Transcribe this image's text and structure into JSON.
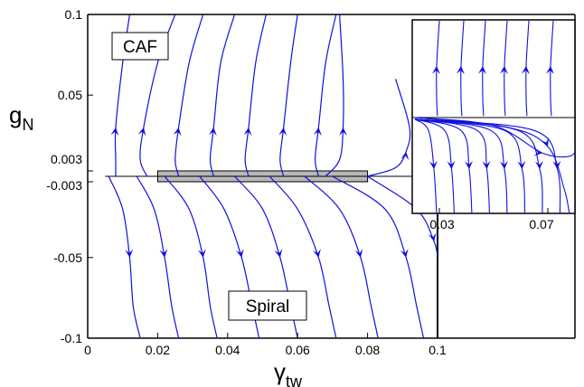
{
  "chart_data": {
    "type": "line",
    "title": "",
    "xlabel": "γ",
    "xlabel_sub": "tw",
    "ylabel": "g",
    "ylabel_sub": "N",
    "xlim": [
      0,
      0.1
    ],
    "ylim": [
      -0.1,
      0.1
    ],
    "xticks": [
      "0",
      "0.02",
      "0.04",
      "0.06",
      "0.08",
      "0.1"
    ],
    "yticks": [
      "0.1",
      "0.05",
      "0.003",
      "-0.003",
      "-0.05",
      "-0.1"
    ],
    "annotations": [
      "CAF",
      "Spiral"
    ],
    "shaded_region": {
      "x": [
        0.02,
        0.08
      ],
      "y": [
        -0.003,
        0.003
      ]
    },
    "fixed_line_y": 0,
    "inset": {
      "xticks": [
        "0.03",
        "0.07"
      ],
      "xlim": [
        0.02,
        0.08
      ],
      "ylim": [
        -0.003,
        0.003
      ]
    },
    "line_color": "#1010e0",
    "flow_lines": [
      {
        "x": [
          0.012,
          0.01,
          0.008,
          0.008,
          0.008
        ],
        "y": [
          0.1,
          0.07,
          0.03,
          0.01,
          0.0
        ]
      },
      {
        "x": [
          0.025,
          0.02,
          0.016,
          0.015,
          0.017
        ],
        "y": [
          0.1,
          0.07,
          0.03,
          0.01,
          0.0
        ]
      },
      {
        "x": [
          0.033,
          0.029,
          0.026,
          0.025,
          0.026
        ],
        "y": [
          0.1,
          0.07,
          0.03,
          0.01,
          0.0
        ]
      },
      {
        "x": [
          0.042,
          0.038,
          0.036,
          0.035,
          0.036
        ],
        "y": [
          0.1,
          0.07,
          0.03,
          0.01,
          0.0
        ]
      },
      {
        "x": [
          0.051,
          0.048,
          0.046,
          0.045,
          0.046
        ],
        "y": [
          0.1,
          0.07,
          0.03,
          0.01,
          0.0
        ]
      },
      {
        "x": [
          0.06,
          0.058,
          0.056,
          0.055,
          0.056
        ],
        "y": [
          0.1,
          0.07,
          0.03,
          0.01,
          0.0
        ]
      },
      {
        "x": [
          0.071,
          0.068,
          0.066,
          0.065,
          0.066
        ],
        "y": [
          0.1,
          0.07,
          0.03,
          0.01,
          0.0
        ]
      },
      {
        "x": [
          0.072,
          0.073,
          0.073,
          0.072,
          0.068
        ],
        "y": [
          0.1,
          0.06,
          0.03,
          0.01,
          0.0
        ]
      },
      {
        "x": [
          0.088,
          0.092,
          0.091,
          0.088,
          0.08
        ],
        "y": [
          0.06,
          0.03,
          0.015,
          0.005,
          0.0
        ]
      },
      {
        "x": [
          0.006,
          0.01,
          0.012,
          0.013,
          0.015
        ],
        "y": [
          0.0,
          -0.02,
          -0.05,
          -0.08,
          -0.1
        ]
      },
      {
        "x": [
          0.014,
          0.019,
          0.022,
          0.024,
          0.026
        ],
        "y": [
          0.0,
          -0.02,
          -0.05,
          -0.08,
          -0.1
        ]
      },
      {
        "x": [
          0.022,
          0.029,
          0.033,
          0.035,
          0.037
        ],
        "y": [
          0.0,
          -0.02,
          -0.05,
          -0.08,
          -0.1
        ]
      },
      {
        "x": [
          0.032,
          0.039,
          0.044,
          0.047,
          0.049
        ],
        "y": [
          0.0,
          -0.02,
          -0.05,
          -0.08,
          -0.1
        ]
      },
      {
        "x": [
          0.042,
          0.05,
          0.055,
          0.058,
          0.06
        ],
        "y": [
          0.0,
          -0.02,
          -0.05,
          -0.08,
          -0.1
        ]
      },
      {
        "x": [
          0.052,
          0.06,
          0.066,
          0.069,
          0.071
        ],
        "y": [
          0.0,
          -0.02,
          -0.05,
          -0.08,
          -0.1
        ]
      },
      {
        "x": [
          0.062,
          0.072,
          0.078,
          0.081,
          0.083
        ],
        "y": [
          0.0,
          -0.02,
          -0.05,
          -0.08,
          -0.1
        ]
      },
      {
        "x": [
          0.07,
          0.085,
          0.091,
          0.094,
          0.096
        ],
        "y": [
          0.0,
          -0.02,
          -0.05,
          -0.08,
          -0.1
        ]
      },
      {
        "x": [
          0.08,
          0.094,
          0.099,
          0.1
        ],
        "y": [
          0.0,
          -0.02,
          -0.04,
          -0.05
        ]
      }
    ]
  }
}
